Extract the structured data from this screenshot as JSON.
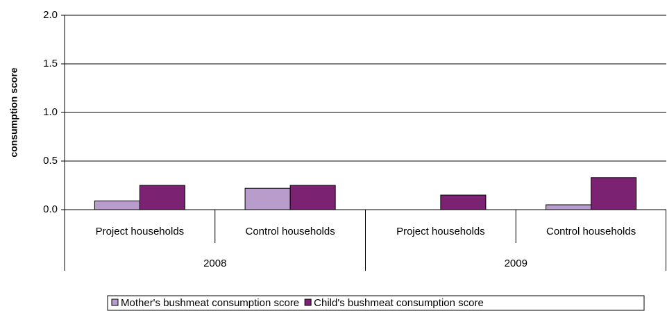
{
  "chart_data": {
    "type": "bar",
    "y_label": "consumption score",
    "categories": [
      "Project households",
      "Control households",
      "Project households",
      "Control households"
    ],
    "groups": [
      "2008",
      "2009"
    ],
    "series": [
      {
        "name": "Mother's bushmeat consumption score",
        "color": "#b89dcc",
        "values": [
          0.09,
          0.22,
          0,
          0.05
        ]
      },
      {
        "name": "Child's bushmeat consumption score",
        "color": "#7b2272",
        "values": [
          0.25,
          0.25,
          0.15,
          0.33
        ]
      }
    ],
    "ylim": [
      0,
      2
    ],
    "yticks": [
      {
        "value": 0,
        "label": "0.0"
      },
      0.5,
      {
        "value": 1,
        "label": "1.0"
      },
      1.5,
      {
        "value": 2,
        "label": "2.0"
      }
    ],
    "grid": true
  }
}
